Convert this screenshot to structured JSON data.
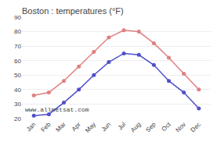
{
  "chart_data": {
    "type": "line",
    "title": "Boston : temperatures (°F)",
    "categories": [
      "Jan",
      "Feb",
      "Mar",
      "Apr",
      "May",
      "Jun",
      "Jul",
      "Aug",
      "Sep",
      "Oct",
      "Nov",
      "Dec"
    ],
    "series": [
      {
        "color": "#e08080",
        "values": [
          36,
          38,
          46,
          56,
          66,
          76,
          81,
          80,
          72,
          62,
          51,
          40
        ]
      },
      {
        "color": "#5050cc",
        "values": [
          22,
          23,
          31,
          40,
          50,
          59,
          65,
          64,
          57,
          46,
          38,
          27
        ]
      }
    ],
    "ylim": [
      20,
      90
    ],
    "yticks": [
      20,
      30,
      40,
      50,
      60,
      70,
      80,
      90
    ],
    "grid": true,
    "marker": "circle",
    "annotations": [
      {
        "text": "www.allmetsat.com"
      }
    ]
  }
}
